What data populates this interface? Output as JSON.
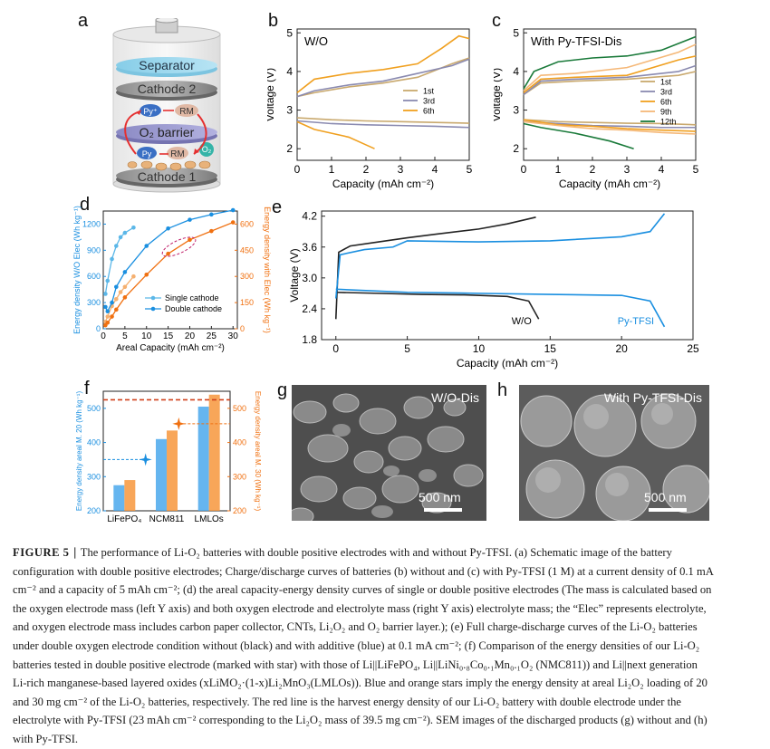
{
  "panels": {
    "a": {
      "letter": "a",
      "layers": {
        "separator": "Separator",
        "cathode2": "Cathode 2",
        "o2_barrier": "O₂ barrier",
        "cathode1": "Cathode 1",
        "py_plus": "Py⁺",
        "rm": "RM",
        "py": "Py",
        "rm2": "RM",
        "o2": "O₂"
      }
    },
    "b": {
      "letter": "b"
    },
    "c": {
      "letter": "c"
    },
    "d": {
      "letter": "d"
    },
    "e": {
      "letter": "e"
    },
    "f": {
      "letter": "f"
    },
    "g": {
      "letter": "g",
      "title": "W/O-Dis",
      "scale": "500 nm"
    },
    "h": {
      "letter": "h",
      "title": "With Py-TFSI-Dis",
      "scale": "500 nm"
    }
  },
  "chart_data": [
    {
      "id": "b",
      "type": "line",
      "title": "W/O",
      "xlabel": "Capacity (mAh cm⁻²)",
      "ylabel": "Voltage (V)",
      "xlim": [
        0,
        5
      ],
      "ylim": [
        1.7,
        5.1
      ],
      "xticks": [
        0,
        1,
        2,
        3,
        4,
        5
      ],
      "yticks": [
        2,
        3,
        4,
        5
      ],
      "legend_position": "center-right",
      "series": [
        {
          "name": "1st",
          "color": "#c9a96e",
          "charge": [
            [
              0,
              3.35
            ],
            [
              0.5,
              3.45
            ],
            [
              1.5,
              3.6
            ],
            [
              2.5,
              3.7
            ],
            [
              3.5,
              3.85
            ],
            [
              4.5,
              4.2
            ],
            [
              5,
              4.35
            ]
          ],
          "discharge": [
            [
              0,
              2.8
            ],
            [
              1,
              2.75
            ],
            [
              2,
              2.72
            ],
            [
              3,
              2.7
            ],
            [
              4,
              2.68
            ],
            [
              5,
              2.66
            ]
          ]
        },
        {
          "name": "3rd",
          "color": "#8a8ab0",
          "charge": [
            [
              0,
              3.35
            ],
            [
              0.5,
              3.5
            ],
            [
              1.5,
              3.65
            ],
            [
              2.5,
              3.75
            ],
            [
              3.5,
              3.95
            ],
            [
              4.5,
              4.15
            ],
            [
              5,
              4.32
            ]
          ],
          "discharge": [
            [
              0,
              2.72
            ],
            [
              1,
              2.65
            ],
            [
              2,
              2.62
            ],
            [
              3,
              2.6
            ],
            [
              4,
              2.58
            ],
            [
              5,
              2.55
            ]
          ]
        },
        {
          "name": "6th",
          "color": "#f0a020",
          "charge": [
            [
              0,
              3.45
            ],
            [
              0.5,
              3.8
            ],
            [
              1.5,
              3.95
            ],
            [
              2.5,
              4.05
            ],
            [
              3.5,
              4.2
            ],
            [
              4.2,
              4.6
            ],
            [
              4.7,
              4.92
            ],
            [
              5,
              4.85
            ]
          ],
          "discharge": [
            [
              0,
              2.7
            ],
            [
              0.5,
              2.5
            ],
            [
              1,
              2.4
            ],
            [
              1.5,
              2.3
            ],
            [
              2,
              2.1
            ],
            [
              2.25,
              2.0
            ]
          ]
        }
      ]
    },
    {
      "id": "c",
      "type": "line",
      "title": "With Py-TFSI-Dis",
      "xlabel": "Capacity (mAh cm⁻²)",
      "ylabel": "Voltage (V)",
      "xlim": [
        0,
        5
      ],
      "ylim": [
        1.7,
        5.1
      ],
      "xticks": [
        0,
        1,
        2,
        3,
        4,
        5
      ],
      "yticks": [
        2,
        3,
        4,
        5
      ],
      "legend_position": "center-right",
      "series": [
        {
          "name": "1st",
          "color": "#c9a96e",
          "charge": [
            [
              0,
              3.4
            ],
            [
              0.5,
              3.7
            ],
            [
              1.5,
              3.75
            ],
            [
              3,
              3.8
            ],
            [
              4.5,
              3.9
            ],
            [
              5,
              4.0
            ]
          ],
          "discharge": [
            [
              0,
              2.75
            ],
            [
              1,
              2.7
            ],
            [
              2,
              2.68
            ],
            [
              3,
              2.66
            ],
            [
              4,
              2.65
            ],
            [
              5,
              2.62
            ]
          ]
        },
        {
          "name": "3rd",
          "color": "#8a8ab0",
          "charge": [
            [
              0,
              3.4
            ],
            [
              0.5,
              3.75
            ],
            [
              1.5,
              3.8
            ],
            [
              3,
              3.85
            ],
            [
              4.5,
              4.0
            ],
            [
              5,
              4.15
            ]
          ],
          "discharge": [
            [
              0,
              2.7
            ],
            [
              1,
              2.65
            ],
            [
              2,
              2.6
            ],
            [
              3,
              2.58
            ],
            [
              4,
              2.55
            ],
            [
              5,
              2.55
            ]
          ]
        },
        {
          "name": "6th",
          "color": "#f0a020",
          "charge": [
            [
              0,
              3.45
            ],
            [
              0.5,
              3.8
            ],
            [
              1.5,
              3.85
            ],
            [
              3,
              3.9
            ],
            [
              4.5,
              4.3
            ],
            [
              5,
              4.4
            ]
          ],
          "discharge": [
            [
              0,
              2.75
            ],
            [
              1,
              2.62
            ],
            [
              2,
              2.58
            ],
            [
              3,
              2.52
            ],
            [
              4,
              2.48
            ],
            [
              5,
              2.45
            ]
          ]
        },
        {
          "name": "9th",
          "color": "#f5b878",
          "charge": [
            [
              0,
              3.5
            ],
            [
              0.5,
              3.9
            ],
            [
              1.5,
              3.95
            ],
            [
              3,
              4.1
            ],
            [
              4.5,
              4.5
            ],
            [
              5,
              4.7
            ]
          ],
          "discharge": [
            [
              0,
              2.7
            ],
            [
              1,
              2.6
            ],
            [
              2,
              2.52
            ],
            [
              3,
              2.48
            ],
            [
              4,
              2.42
            ],
            [
              5,
              2.38
            ]
          ]
        },
        {
          "name": "12th",
          "color": "#1a7a3a",
          "charge": [
            [
              0,
              3.55
            ],
            [
              0.3,
              4.0
            ],
            [
              1,
              4.25
            ],
            [
              2,
              4.35
            ],
            [
              3,
              4.4
            ],
            [
              4,
              4.55
            ],
            [
              5,
              4.9
            ]
          ],
          "discharge": [
            [
              0,
              2.65
            ],
            [
              0.5,
              2.55
            ],
            [
              1.5,
              2.4
            ],
            [
              2.5,
              2.2
            ],
            [
              3.2,
              2.0
            ]
          ]
        }
      ]
    },
    {
      "id": "d",
      "type": "line",
      "xlabel": "Areal Capacity (mAh cm⁻²)",
      "ylabel": "Energy density W/O Elec (Wh kg⁻¹)",
      "ylabel_right": "Energy density with Elec (Wh kg⁻¹)",
      "xlim": [
        0,
        31
      ],
      "ylim": [
        0,
        1350
      ],
      "ylim_right": [
        0,
        675
      ],
      "xticks": [
        0,
        5,
        10,
        15,
        20,
        25,
        30
      ],
      "yticks": [
        0,
        300,
        600,
        900,
        1200
      ],
      "yticks_right": [
        0,
        150,
        300,
        450,
        600
      ],
      "legend_position": "bottom-right",
      "series": [
        {
          "name": "Single cathode",
          "axis": "left",
          "color": "#5bb7e8",
          "x": [
            0.5,
            1,
            2,
            3,
            4,
            5,
            7
          ],
          "y": [
            400,
            550,
            800,
            950,
            1050,
            1100,
            1160
          ]
        },
        {
          "name": "Single cathode",
          "axis": "right",
          "color": "#f5b070",
          "x": [
            0.5,
            1,
            2,
            3,
            4,
            5,
            7
          ],
          "y": [
            40,
            70,
            130,
            170,
            210,
            240,
            300
          ]
        },
        {
          "name": "Double cathode",
          "axis": "left",
          "color": "#1a8fe0",
          "x": [
            0.5,
            1,
            2,
            3,
            5,
            10,
            15,
            20,
            25,
            30
          ],
          "y": [
            250,
            200,
            300,
            480,
            650,
            950,
            1150,
            1250,
            1310,
            1360
          ]
        },
        {
          "name": "Double cathode",
          "axis": "right",
          "color": "#f07010",
          "x": [
            0.5,
            1,
            2,
            3,
            5,
            10,
            15,
            20,
            25,
            30
          ],
          "y": [
            20,
            35,
            70,
            110,
            180,
            310,
            430,
            510,
            560,
            610
          ]
        }
      ]
    },
    {
      "id": "e",
      "type": "line",
      "xlabel": "Capacity (mAh cm⁻²)",
      "ylabel": "Voltage (V)",
      "xlim": [
        -1,
        25
      ],
      "ylim": [
        1.8,
        4.3
      ],
      "xticks": [
        0,
        5,
        10,
        15,
        20,
        25
      ],
      "yticks": [
        1.8,
        2.4,
        3.0,
        3.6,
        4.2
      ],
      "series": [
        {
          "name": "W/O",
          "color": "#222222",
          "charge": [
            [
              0,
              2.2
            ],
            [
              0.2,
              3.5
            ],
            [
              1,
              3.62
            ],
            [
              3,
              3.7
            ],
            [
              5,
              3.78
            ],
            [
              7,
              3.85
            ],
            [
              10,
              3.95
            ],
            [
              12,
              4.05
            ],
            [
              14,
              4.18
            ]
          ],
          "discharge": [
            [
              0,
              2.72
            ],
            [
              3,
              2.7
            ],
            [
              6,
              2.68
            ],
            [
              9,
              2.67
            ],
            [
              12,
              2.64
            ],
            [
              13.5,
              2.55
            ],
            [
              14.2,
              2.2
            ]
          ]
        },
        {
          "name": "Py-TFSI",
          "color": "#1a8fe0",
          "charge": [
            [
              0,
              2.6
            ],
            [
              0.3,
              3.45
            ],
            [
              2,
              3.55
            ],
            [
              4,
              3.6
            ],
            [
              5,
              3.72
            ],
            [
              10,
              3.7
            ],
            [
              15,
              3.72
            ],
            [
              20,
              3.8
            ],
            [
              22,
              3.9
            ],
            [
              23,
              4.25
            ]
          ],
          "discharge": [
            [
              0,
              2.78
            ],
            [
              5,
              2.72
            ],
            [
              10,
              2.7
            ],
            [
              15,
              2.68
            ],
            [
              20,
              2.66
            ],
            [
              22,
              2.55
            ],
            [
              23,
              2.05
            ]
          ]
        }
      ]
    },
    {
      "id": "f",
      "type": "bar",
      "categories": [
        "LiFePO₄",
        "NCM811",
        "LMLOs"
      ],
      "ylabel": "Energy density areal M. 20 (Wh kg⁻¹)",
      "ylabel_right": "Energy density areal M. 30 (Wh kg⁻¹)",
      "ylim": [
        200,
        550
      ],
      "yticks": [
        200,
        300,
        400,
        500
      ],
      "yticks_right": [
        200,
        300,
        400,
        500
      ],
      "series": [
        {
          "name": "areal 20",
          "color": "#4aa8ec",
          "values": [
            275,
            410,
            505
          ]
        },
        {
          "name": "areal 30",
          "color": "#f7963c",
          "values": [
            290,
            435,
            540
          ]
        }
      ],
      "stars": [
        {
          "series": "areal 20",
          "value": 350,
          "color": "#1a8fe0"
        },
        {
          "series": "areal 30",
          "value": 455,
          "color": "#f07010"
        }
      ],
      "red_line": 525
    }
  ],
  "caption": {
    "lines": [
      [
        "FIGURE 5",
        " ∣  The performance of Li-O₂ batteries with double positive electrodes with and without Py-TFSI. (a) Schematic image of the battery"
      ],
      [
        "",
        "configuration with double positive electrodes; Charge/discharge curves of batteries (b) without and (c) with Py-TFSI (1 M) at a current density of 0.1 mA"
      ],
      [
        "",
        "cm⁻² and a capacity of 5 mAh cm⁻²; (d) the areal capacity-energy density curves of single or double positive electrodes (The mass is calculated based on"
      ],
      [
        "",
        "the oxygen electrode mass (left Y axis) and both oxygen electrode and electrolyte mass (right Y axis) electrolyte mass; the “Elec” represents electrolyte,"
      ],
      [
        "",
        "and oxygen electrode mass includes carbon paper collector, CNTs, Li₂O₂ and O₂ barrier layer.); (e) Full charge-discharge curves of the Li-O₂ batteries"
      ],
      [
        "",
        "under double oxygen electrode condition without (black) and with additive (blue) at 0.1 mA cm⁻²; (f) Comparison of the energy densities of our Li-O₂"
      ],
      [
        "",
        "batteries tested in double positive electrode (marked with star) with those of Li||LiFePO₄, Li||LiNi₀.₈Co₀.₁Mn₀.₁O₂ (NMC811)) and Li||next generation"
      ],
      [
        "",
        "Li-rich manganese-based layered oxides (xLiMO₂·(1-x)Li₂MnO₃(LMLOs)). Blue and orange stars imply the energy density at areal Li₂O₂ loading of 20"
      ],
      [
        "",
        "and 30 mg cm⁻² of the Li-O₂ batteries, respectively. The red line is the harvest energy density of our Li-O₂ battery with double electrode under the"
      ],
      [
        "",
        "electrolyte with Py-TFSI (23 mAh cm⁻² corresponding to the Li₂O₂ mass of 39.5 mg cm⁻²). SEM images of the discharged products (g) without and (h)"
      ],
      [
        "",
        "with Py-TFSI."
      ]
    ]
  }
}
